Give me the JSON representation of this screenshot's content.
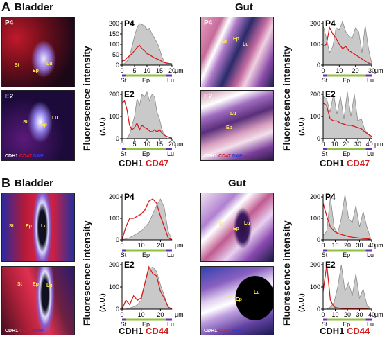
{
  "panels": {
    "A": {
      "letter": "A",
      "left_title": "Bladder",
      "right_title": "Gut"
    },
    "B": {
      "letter": "B",
      "left_title": "Bladder",
      "right_title": "Gut"
    }
  },
  "micro_labels": {
    "p4": "P4",
    "e2": "E2",
    "st": "St",
    "ep": "Ep",
    "lu": "Lu",
    "cdh1": "CDH1",
    "cd47": "CD47",
    "cd44": "CD44",
    "dapi": "DAPI"
  },
  "axis": {
    "ylabel": "Fluorescence intensity",
    "yunit": "(A.U.)",
    "xunit": "μm",
    "regions": [
      "St",
      "Ep",
      "Lu"
    ]
  },
  "chart_legends": {
    "A": {
      "grey": "CDH1",
      "red": "CD47"
    },
    "B": {
      "grey": "CDH1",
      "red": "CD44"
    }
  },
  "colors": {
    "red_series": "#d81c1c",
    "grey_fill": "#c9c9c9",
    "region_green": "#8fc23c",
    "region_purple": "#6b2fb3"
  },
  "chart_data": [
    {
      "id": "A-bladder-P4",
      "type": "area",
      "title": "P4",
      "x": [
        0,
        1,
        2,
        3,
        4,
        5,
        6,
        7,
        8,
        9,
        10,
        11,
        12,
        13,
        14,
        15,
        16,
        17,
        18,
        19,
        20
      ],
      "series": [
        {
          "name": "CDH1",
          "values": [
            5,
            8,
            20,
            45,
            90,
            140,
            180,
            200,
            195,
            190,
            170,
            175,
            150,
            130,
            110,
            80,
            40,
            15,
            8,
            5,
            3
          ]
        },
        {
          "name": "CD47",
          "values": [
            20,
            22,
            35,
            45,
            55,
            70,
            85,
            95,
            80,
            70,
            55,
            50,
            42,
            35,
            30,
            25,
            18,
            12,
            10,
            8,
            6
          ]
        }
      ],
      "xlim": [
        0,
        20
      ],
      "ylim": [
        0,
        200
      ],
      "yticks": [
        0,
        50,
        100,
        150,
        200
      ],
      "xticks": [
        0,
        5,
        10,
        15,
        20
      ]
    },
    {
      "id": "A-bladder-E2",
      "type": "area",
      "title": "E2",
      "x": [
        0,
        1,
        2,
        3,
        4,
        5,
        6,
        7,
        8,
        9,
        10,
        11,
        12,
        13,
        14,
        15,
        16,
        17,
        18,
        19,
        20
      ],
      "series": [
        {
          "name": "CDH1",
          "values": [
            0,
            0,
            0,
            20,
            60,
            100,
            180,
            150,
            200,
            190,
            210,
            170,
            200,
            190,
            120,
            90,
            40,
            20,
            0,
            0,
            0
          ]
        },
        {
          "name": "CD47",
          "values": [
            160,
            170,
            130,
            60,
            40,
            50,
            70,
            40,
            60,
            50,
            45,
            35,
            30,
            40,
            30,
            40,
            25,
            15,
            10,
            5,
            3
          ]
        }
      ],
      "xlim": [
        0,
        20
      ],
      "ylim": [
        0,
        200
      ],
      "yticks": [
        0,
        100,
        200
      ],
      "xticks": [
        0,
        5,
        10,
        15,
        20
      ]
    },
    {
      "id": "A-gut-P4",
      "type": "area",
      "title": "P4",
      "x": [
        0,
        2,
        4,
        6,
        8,
        10,
        12,
        14,
        16,
        18,
        20,
        22,
        24,
        26,
        28,
        30
      ],
      "series": [
        {
          "name": "CDH1",
          "values": [
            190,
            130,
            60,
            90,
            180,
            170,
            210,
            160,
            140,
            130,
            180,
            160,
            60,
            190,
            80,
            10
          ]
        },
        {
          "name": "CD47",
          "values": [
            90,
            100,
            180,
            150,
            130,
            100,
            80,
            90,
            70,
            60,
            50,
            40,
            30,
            20,
            10,
            5
          ]
        }
      ],
      "xlim": [
        0,
        30
      ],
      "ylim": [
        0,
        200
      ],
      "yticks": [
        0,
        100,
        200
      ],
      "xticks": [
        0,
        10,
        20,
        30
      ]
    },
    {
      "id": "A-gut-E2",
      "type": "area",
      "title": "E2",
      "x": [
        0,
        3,
        6,
        9,
        12,
        15,
        18,
        21,
        24,
        27,
        30,
        33,
        36,
        39,
        42
      ],
      "series": [
        {
          "name": "CDH1",
          "values": [
            190,
            180,
            120,
            200,
            110,
            190,
            90,
            210,
            100,
            200,
            80,
            90,
            40,
            20,
            0
          ]
        },
        {
          "name": "CD47",
          "values": [
            160,
            150,
            90,
            80,
            80,
            70,
            65,
            60,
            60,
            55,
            50,
            45,
            30,
            20,
            10
          ]
        }
      ],
      "xlim": [
        0,
        42
      ],
      "ylim": [
        0,
        200
      ],
      "yticks": [
        0,
        100,
        200
      ],
      "xticks": [
        0,
        10,
        20,
        30,
        40
      ]
    },
    {
      "id": "B-bladder-P4",
      "type": "area",
      "title": "P4",
      "x": [
        0,
        2,
        4,
        6,
        8,
        10,
        12,
        14,
        16,
        18,
        20,
        22,
        24,
        26
      ],
      "series": [
        {
          "name": "CDH1",
          "values": [
            0,
            5,
            10,
            20,
            30,
            40,
            60,
            80,
            120,
            160,
            190,
            150,
            40,
            0
          ]
        },
        {
          "name": "CD44",
          "values": [
            0,
            60,
            100,
            100,
            110,
            120,
            140,
            180,
            190,
            170,
            110,
            60,
            10,
            0
          ]
        }
      ],
      "xlim": [
        0,
        26
      ],
      "ylim": [
        0,
        200
      ],
      "yticks": [
        0,
        100,
        200
      ],
      "xticks": [
        0,
        10,
        20
      ]
    },
    {
      "id": "B-bladder-E2",
      "type": "area",
      "title": "E2",
      "x": [
        0,
        2,
        4,
        6,
        8,
        10,
        12,
        14,
        16,
        18,
        20,
        22,
        24,
        26
      ],
      "series": [
        {
          "name": "CDH1",
          "values": [
            0,
            0,
            5,
            10,
            20,
            40,
            120,
            180,
            190,
            170,
            110,
            60,
            10,
            0
          ]
        },
        {
          "name": "CD44",
          "values": [
            0,
            40,
            20,
            60,
            40,
            50,
            120,
            190,
            160,
            150,
            80,
            50,
            10,
            0
          ]
        }
      ],
      "xlim": [
        0,
        26
      ],
      "ylim": [
        0,
        200
      ],
      "yticks": [
        0,
        100,
        200
      ],
      "xticks": [
        0,
        10,
        20
      ]
    },
    {
      "id": "B-gut-P4",
      "type": "area",
      "title": "P4",
      "x": [
        0,
        3,
        6,
        9,
        12,
        15,
        18,
        21,
        24,
        27,
        30,
        33,
        36,
        39
      ],
      "series": [
        {
          "name": "CDH1",
          "values": [
            20,
            40,
            200,
            60,
            30,
            100,
            210,
            100,
            80,
            160,
            60,
            130,
            60,
            10
          ]
        },
        {
          "name": "CD44",
          "values": [
            170,
            110,
            60,
            40,
            30,
            25,
            20,
            15,
            12,
            10,
            8,
            6,
            5,
            3
          ]
        }
      ],
      "xlim": [
        0,
        40
      ],
      "ylim": [
        0,
        200
      ],
      "yticks": [
        0,
        100,
        200
      ],
      "xticks": [
        0,
        10,
        20,
        30,
        40
      ]
    },
    {
      "id": "B-gut-E2",
      "type": "area",
      "title": "E2",
      "x": [
        0,
        3,
        6,
        9,
        12,
        15,
        18,
        21,
        24,
        27,
        30,
        33,
        36,
        39
      ],
      "series": [
        {
          "name": "CDH1",
          "values": [
            0,
            0,
            10,
            30,
            100,
            200,
            80,
            120,
            60,
            160,
            50,
            90,
            20,
            0
          ]
        },
        {
          "name": "CD44",
          "values": [
            80,
            200,
            40,
            10,
            5,
            4,
            3,
            3,
            2,
            2,
            2,
            2,
            1,
            0
          ]
        }
      ],
      "xlim": [
        0,
        40
      ],
      "ylim": [
        0,
        200
      ],
      "yticks": [
        0,
        100,
        200
      ],
      "xticks": [
        0,
        10,
        20,
        30,
        40
      ]
    }
  ]
}
